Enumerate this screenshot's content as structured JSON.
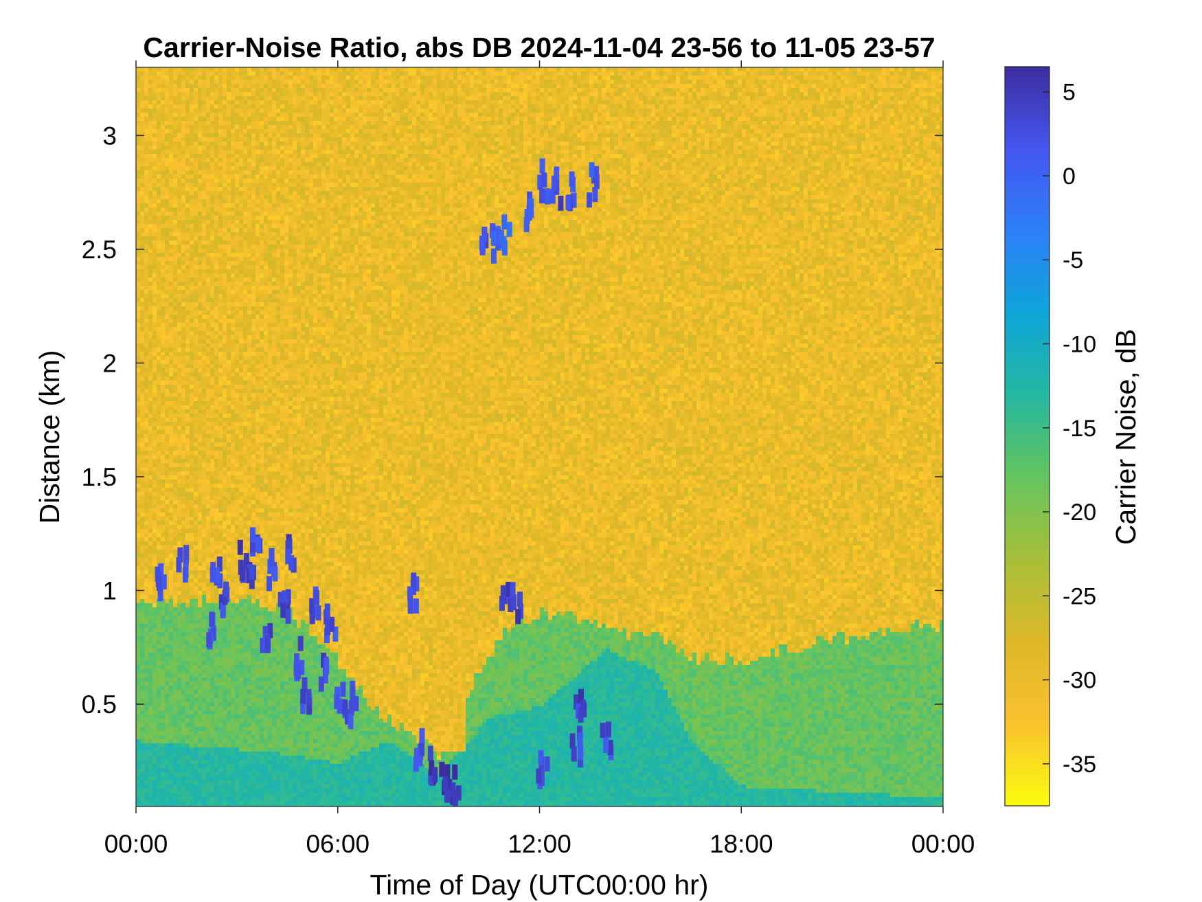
{
  "chart_data": {
    "type": "heatmap",
    "title": "Carrier-Noise Ratio, abs DB 2024-11-04 23-56 to 11-05 23-57",
    "xlabel": "Time of Day (UTC00:00 hr)",
    "ylabel": "Distance (km)",
    "xlim": [
      0,
      24
    ],
    "ylim": [
      0.05,
      3.3
    ],
    "x_ticks": [
      {
        "value": 0,
        "label": "00:00"
      },
      {
        "value": 6,
        "label": "06:00"
      },
      {
        "value": 12,
        "label": "12:00"
      },
      {
        "value": 18,
        "label": "18:00"
      },
      {
        "value": 24,
        "label": "00:00"
      }
    ],
    "y_ticks": [
      {
        "value": 0.5,
        "label": "0.5"
      },
      {
        "value": 1,
        "label": "1"
      },
      {
        "value": 1.5,
        "label": "1.5"
      },
      {
        "value": 2,
        "label": "2"
      },
      {
        "value": 2.5,
        "label": "2.5"
      },
      {
        "value": 3,
        "label": "3"
      }
    ],
    "grid": false,
    "colorbar": {
      "label": "Carrier Noise, dB",
      "range": [
        -37.5,
        6.5
      ],
      "colormap": "parula-reversed",
      "ticks": [
        {
          "value": 5,
          "label": "5"
        },
        {
          "value": 0,
          "label": "0"
        },
        {
          "value": -5,
          "label": "-5"
        },
        {
          "value": -10,
          "label": "-10"
        },
        {
          "value": -15,
          "label": "-15"
        },
        {
          "value": -20,
          "label": "-20"
        },
        {
          "value": -25,
          "label": "-25"
        },
        {
          "value": -30,
          "label": "-30"
        },
        {
          "value": -35,
          "label": "-35"
        }
      ],
      "colors": [
        "#f9fb0e",
        "#fac22e",
        "#ddb828",
        "#a7bf39",
        "#65c45e",
        "#24b8a0",
        "#0ea5d8",
        "#2d7ff8",
        "#4456f0",
        "#3b2d9e"
      ]
    },
    "field": {
      "background_db": -30,
      "lower_layer_db": -18,
      "regions": [
        {
          "name": "aerosol boundary layer",
          "db": -18,
          "x_range": [
            0,
            24
          ],
          "top_km": [
            [
              0,
              0.95
            ],
            [
              1.5,
              0.95
            ],
            [
              3.0,
              0.98
            ],
            [
              4.5,
              0.92
            ],
            [
              6.0,
              0.7
            ],
            [
              7.0,
              0.5
            ],
            [
              8.0,
              0.4
            ],
            [
              9.0,
              0.3
            ],
            [
              10.0,
              0.6
            ],
            [
              11.0,
              0.85
            ],
            [
              12.0,
              0.9
            ],
            [
              13.0,
              0.9
            ],
            [
              14.5,
              0.82
            ],
            [
              15.5,
              0.8
            ],
            [
              16.5,
              0.72
            ],
            [
              18.0,
              0.7
            ],
            [
              20.0,
              0.78
            ],
            [
              22.0,
              0.82
            ],
            [
              24.0,
              0.86
            ]
          ]
        },
        {
          "name": "surface layer",
          "db": -13,
          "x_range": [
            0,
            24
          ],
          "top_km": [
            [
              0,
              0.35
            ],
            [
              4.0,
              0.3
            ],
            [
              6.0,
              0.25
            ],
            [
              7.5,
              0.35
            ],
            [
              9.0,
              0.2
            ],
            [
              10.5,
              0.45
            ],
            [
              12.0,
              0.5
            ],
            [
              14.0,
              0.75
            ],
            [
              15.5,
              0.65
            ],
            [
              16.5,
              0.35
            ],
            [
              18.0,
              0.15
            ],
            [
              24.0,
              0.1
            ]
          ]
        },
        {
          "name": "clear gap",
          "db": -30,
          "x_range": [
            8.8,
            9.8
          ],
          "top_km": [
            [
              8.8,
              0.95
            ],
            [
              9.8,
              0.95
            ]
          ]
        }
      ],
      "cloud_cells": [
        {
          "x": 0.75,
          "y": 1.05,
          "db": 2
        },
        {
          "x": 1.4,
          "y": 1.12,
          "db": 3
        },
        {
          "x": 2.4,
          "y": 1.05,
          "db": 2
        },
        {
          "x": 2.6,
          "y": 0.98,
          "db": 3
        },
        {
          "x": 3.2,
          "y": 1.12,
          "db": 4
        },
        {
          "x": 3.4,
          "y": 1.05,
          "db": 4
        },
        {
          "x": 3.6,
          "y": 1.18,
          "db": 3
        },
        {
          "x": 3.9,
          "y": 0.8,
          "db": 3
        },
        {
          "x": 4.1,
          "y": 1.1,
          "db": 2
        },
        {
          "x": 4.4,
          "y": 0.95,
          "db": 3
        },
        {
          "x": 4.6,
          "y": 1.15,
          "db": 4
        },
        {
          "x": 4.8,
          "y": 0.7,
          "db": 3
        },
        {
          "x": 5.1,
          "y": 0.55,
          "db": 3
        },
        {
          "x": 5.3,
          "y": 0.95,
          "db": 2
        },
        {
          "x": 5.6,
          "y": 0.65,
          "db": 3
        },
        {
          "x": 5.8,
          "y": 0.85,
          "db": 2
        },
        {
          "x": 6.1,
          "y": 0.55,
          "db": 3
        },
        {
          "x": 6.4,
          "y": 0.5,
          "db": 3
        },
        {
          "x": 2.3,
          "y": 0.82,
          "db": 2
        },
        {
          "x": 8.2,
          "y": 1.0,
          "db": 3
        },
        {
          "x": 8.4,
          "y": 0.3,
          "db": 2
        },
        {
          "x": 8.8,
          "y": 0.22,
          "db": 5
        },
        {
          "x": 9.2,
          "y": 0.16,
          "db": 6
        },
        {
          "x": 9.5,
          "y": 0.14,
          "db": 5
        },
        {
          "x": 11.0,
          "y": 0.95,
          "db": 4
        },
        {
          "x": 11.3,
          "y": 0.94,
          "db": 4
        },
        {
          "x": 12.1,
          "y": 0.22,
          "db": 3
        },
        {
          "x": 13.2,
          "y": 0.5,
          "db": 4
        },
        {
          "x": 13.1,
          "y": 0.3,
          "db": 3
        },
        {
          "x": 14.0,
          "y": 0.32,
          "db": 3
        },
        {
          "x": 10.3,
          "y": 2.55,
          "db": 2
        },
        {
          "x": 10.7,
          "y": 2.52,
          "db": 1
        },
        {
          "x": 11.0,
          "y": 2.57,
          "db": 0
        },
        {
          "x": 11.7,
          "y": 2.65,
          "db": 1
        },
        {
          "x": 12.1,
          "y": 2.8,
          "db": 2
        },
        {
          "x": 12.5,
          "y": 2.78,
          "db": 3
        },
        {
          "x": 12.9,
          "y": 2.75,
          "db": 2
        },
        {
          "x": 13.6,
          "y": 2.78,
          "db": 1
        }
      ]
    }
  }
}
